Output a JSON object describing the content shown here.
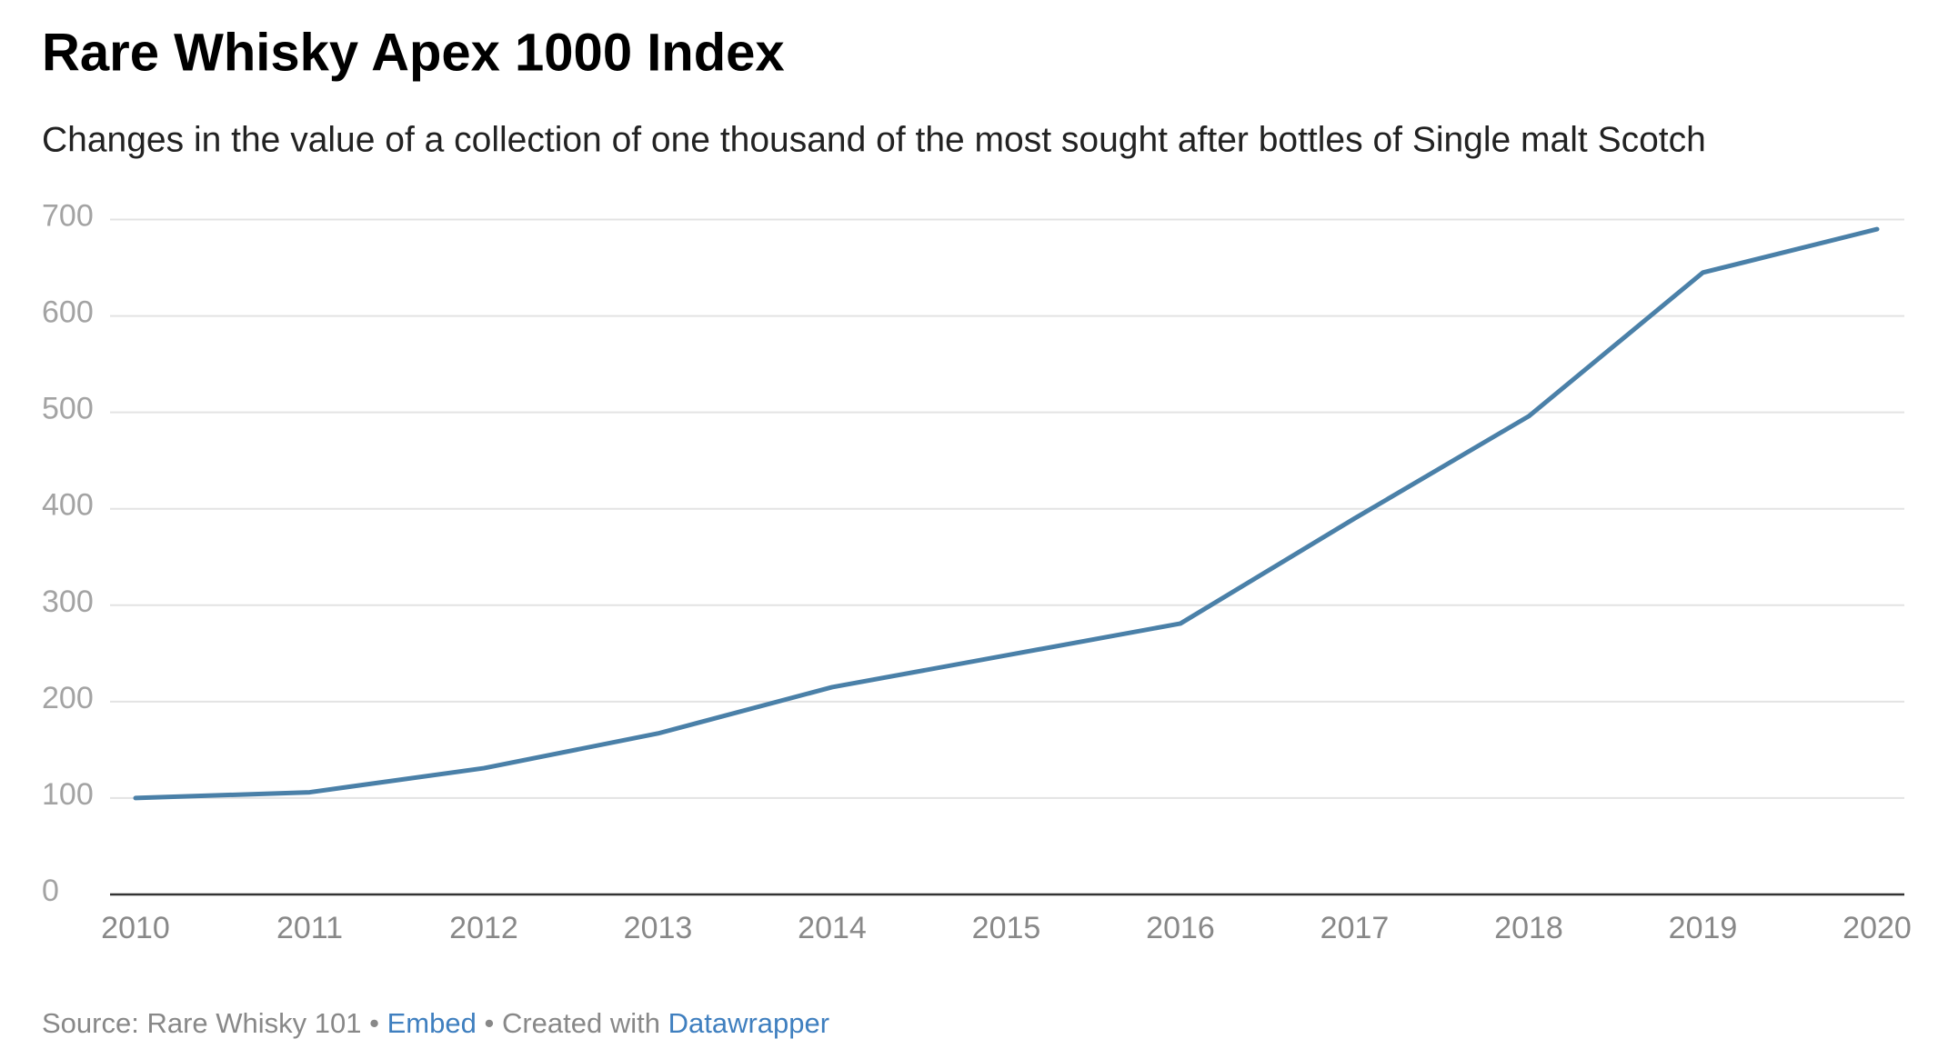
{
  "chart_data": {
    "type": "line",
    "title": "Rare Whisky Apex 1000 Index",
    "subtitle": "Changes in the value of a collection of one thousand of the most sought after bottles of Single malt Scotch",
    "x": [
      2010,
      2011,
      2012,
      2013,
      2014,
      2015,
      2016,
      2017,
      2018,
      2019,
      2020
    ],
    "series": [
      {
        "name": "Rare Whisky Apex 1000 Index",
        "color": "#4a80a8",
        "values": [
          100,
          106,
          131,
          167,
          215,
          248,
          281,
          390,
          496,
          645,
          690
        ]
      }
    ],
    "xlim": [
      2010,
      2020
    ],
    "xticks": [
      2010,
      2011,
      2012,
      2013,
      2014,
      2015,
      2016,
      2017,
      2018,
      2019,
      2020
    ],
    "ylim": [
      0,
      700
    ],
    "yticks": [
      0,
      100,
      200,
      300,
      400,
      500,
      600,
      700
    ],
    "grid": true,
    "source": "Source: Rare Whisky 101",
    "separator": "•",
    "embed": "Embed",
    "created_with": "Created with",
    "credit": "Datawrapper"
  }
}
